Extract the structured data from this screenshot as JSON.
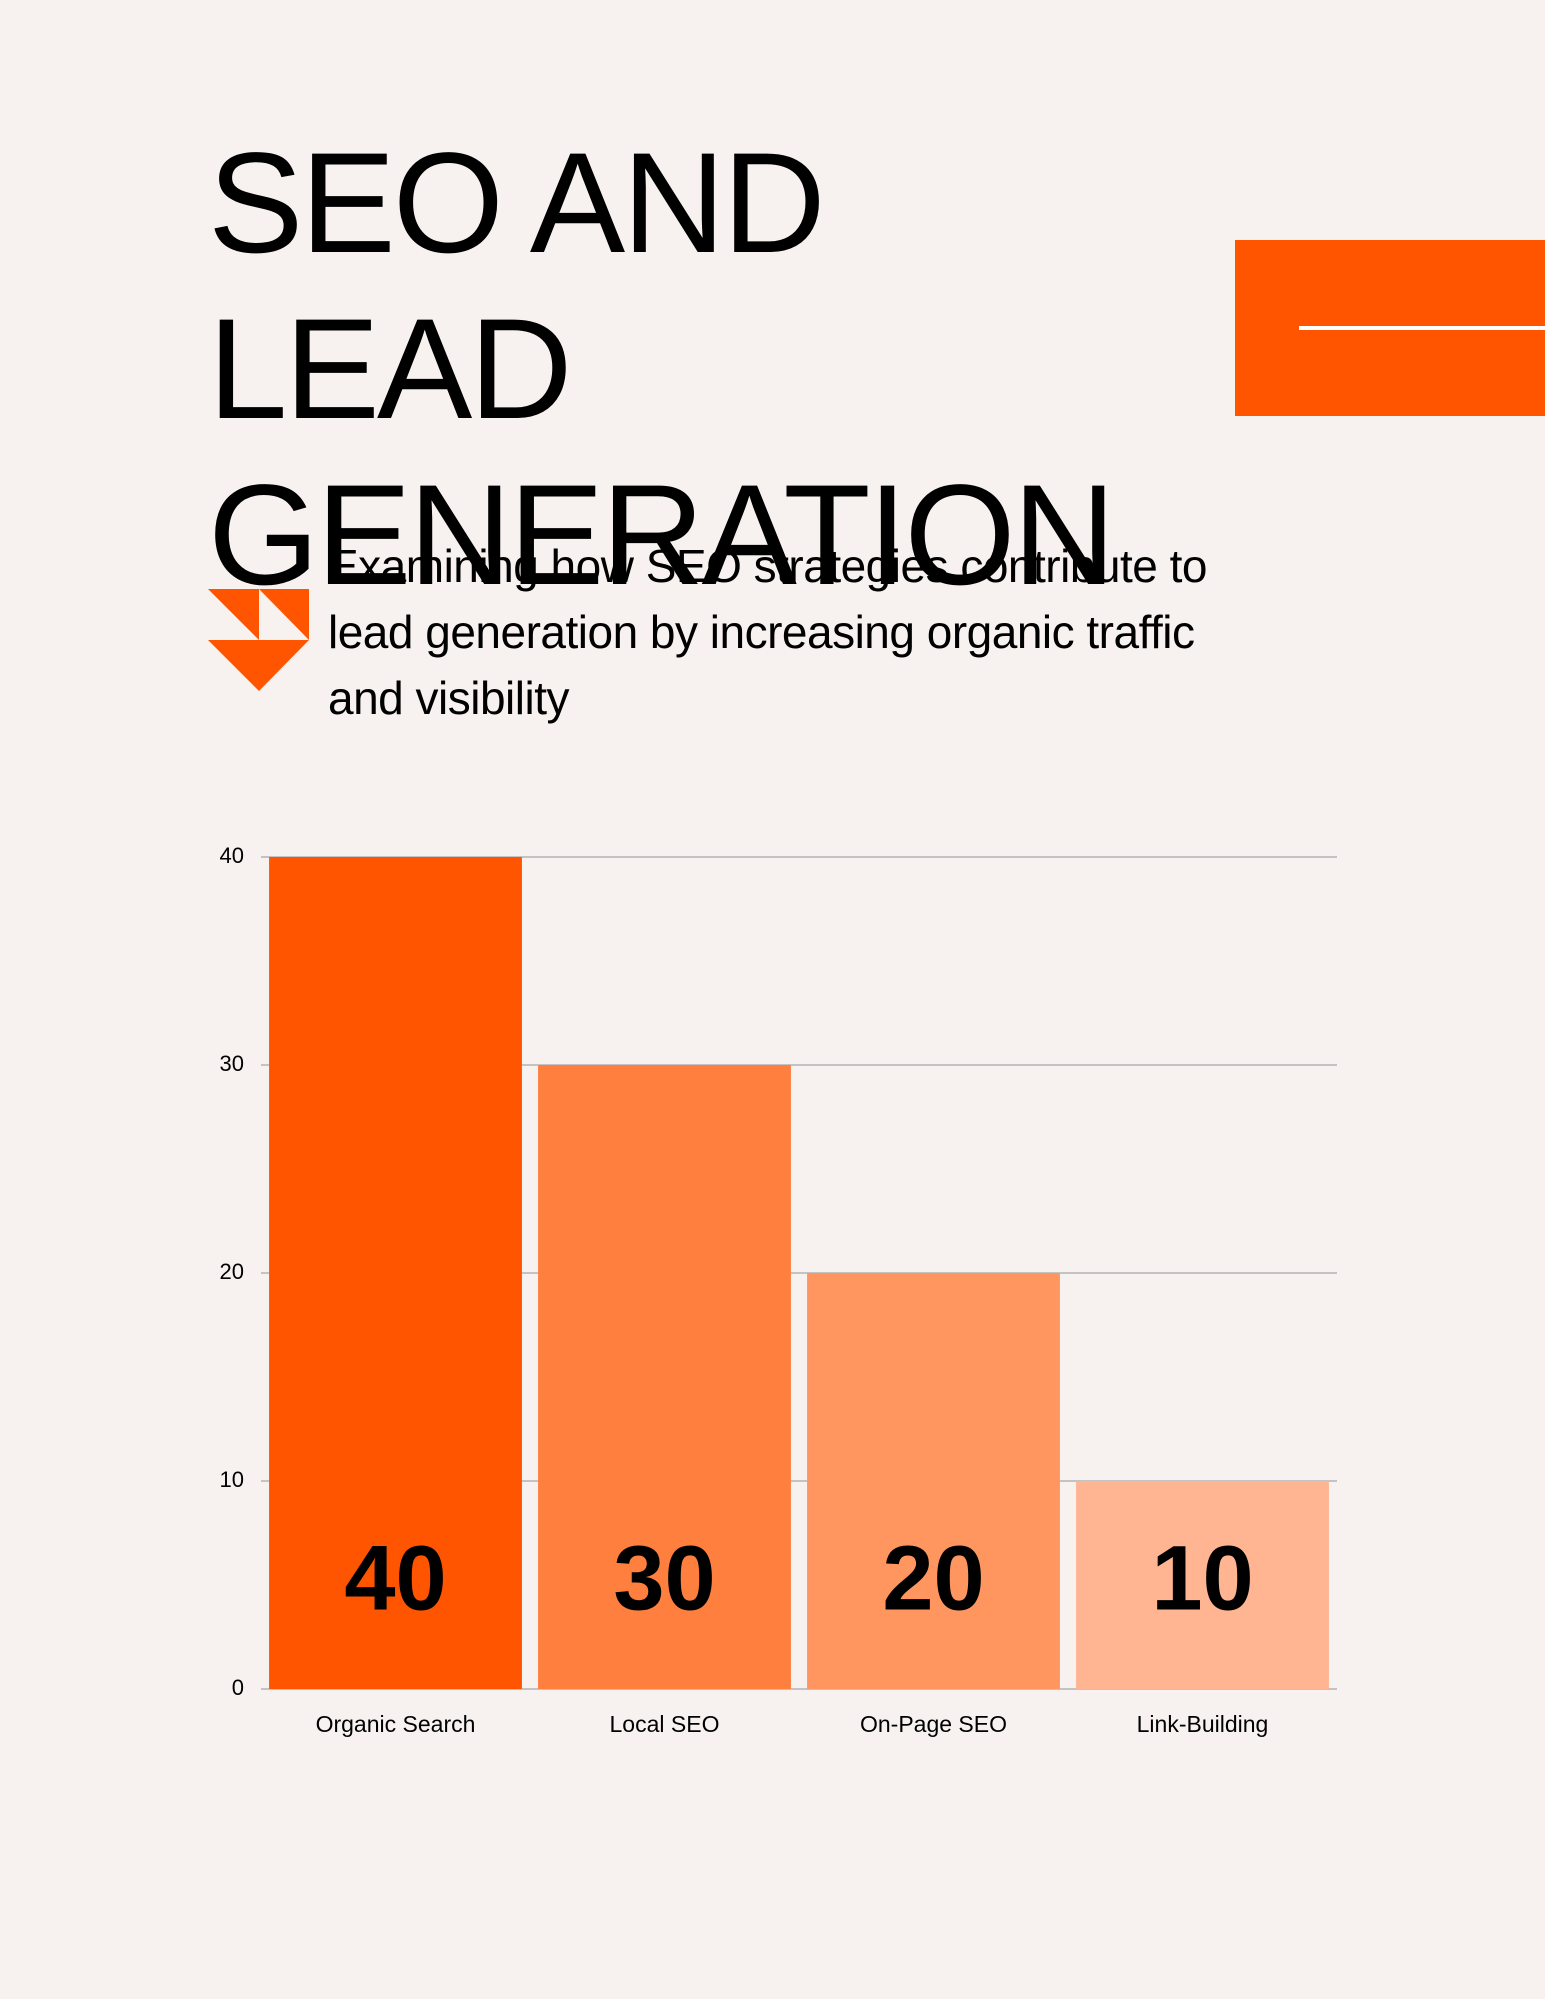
{
  "header": {
    "title": "SEO AND LEAD GENERATION",
    "subtitle": "Examining how SEO strategies contribute to lead generation by increasing organic traffic and visibility"
  },
  "chart_data": {
    "type": "bar",
    "categories": [
      "Organic Search",
      "Local SEO",
      "On-Page SEO",
      "Link-Building"
    ],
    "values": [
      40,
      30,
      20,
      10
    ],
    "colors": [
      "#ff5500",
      "#ff7f3e",
      "#ff9660",
      "#ffb591"
    ],
    "ylim": [
      0,
      40
    ],
    "yticks": [
      0,
      10,
      20,
      30,
      40
    ],
    "grid": true
  }
}
